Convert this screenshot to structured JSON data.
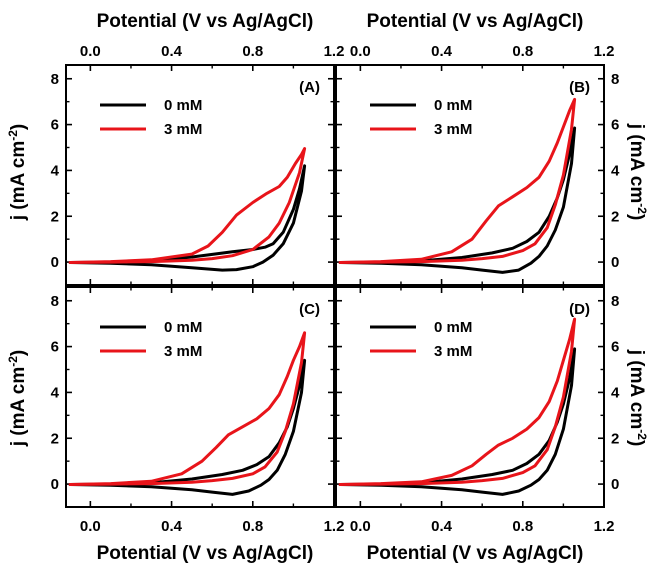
{
  "figure": {
    "x_axis_label": "Potential (V vs Ag/AgCl)",
    "y_axis_label": "j (mA cm",
    "y_axis_label_sup": "-2",
    "y_axis_label_close": ")"
  },
  "colors": {
    "series_0mM": "#000000",
    "series_3mM": "#e8141a",
    "axes": "#000000"
  },
  "chart_data": [
    {
      "type": "line",
      "panel_label": "(A)",
      "xlim": [
        -0.12,
        1.2
      ],
      "ylim": [
        -1,
        8.6
      ],
      "x_ticks": [
        "0.0",
        "0.4",
        "0.8",
        "1.2"
      ],
      "y_ticks": [
        "0",
        "2",
        "4",
        "6",
        "8"
      ],
      "legend_position": "top-left",
      "series": [
        {
          "name": "0 mM",
          "color": "#000000",
          "x": [
            -0.1,
            0.1,
            0.3,
            0.5,
            0.7,
            0.8,
            0.86,
            0.9,
            0.95,
            1.0,
            1.03,
            1.055,
            1.04,
            1.0,
            0.95,
            0.9,
            0.85,
            0.8,
            0.72,
            0.65,
            0.5,
            0.3,
            0.1,
            -0.1
          ],
          "y": [
            -0.02,
            0.0,
            0.05,
            0.22,
            0.45,
            0.55,
            0.65,
            0.8,
            1.3,
            2.3,
            3.2,
            4.2,
            3.1,
            1.7,
            0.8,
            0.3,
            0.0,
            -0.2,
            -0.33,
            -0.35,
            -0.25,
            -0.12,
            -0.05,
            -0.02
          ]
        },
        {
          "name": "3 mM",
          "color": "#e8141a",
          "x": [
            -0.1,
            0.1,
            0.3,
            0.5,
            0.58,
            0.65,
            0.72,
            0.8,
            0.87,
            0.93,
            0.97,
            1.01,
            1.04,
            1.055,
            1.03,
            0.98,
            0.93,
            0.88,
            0.8,
            0.7,
            0.6,
            0.5,
            0.3,
            0.1,
            -0.1
          ],
          "y": [
            -0.02,
            0.02,
            0.1,
            0.35,
            0.7,
            1.3,
            2.05,
            2.6,
            3.0,
            3.3,
            3.7,
            4.3,
            4.7,
            4.95,
            3.9,
            2.6,
            1.7,
            1.1,
            0.55,
            0.28,
            0.15,
            0.08,
            0.02,
            0.0,
            -0.02
          ]
        }
      ]
    },
    {
      "type": "line",
      "panel_label": "(B)",
      "xlim": [
        -0.12,
        1.2
      ],
      "ylim": [
        -1,
        8.6
      ],
      "x_ticks": [
        "0.0",
        "0.4",
        "0.8",
        "1.2"
      ],
      "y_ticks": [
        "0",
        "2",
        "4",
        "6",
        "8"
      ],
      "legend_position": "top-left",
      "series": [
        {
          "name": "0 mM",
          "color": "#000000",
          "x": [
            -0.1,
            0.1,
            0.3,
            0.5,
            0.65,
            0.75,
            0.82,
            0.88,
            0.93,
            0.97,
            1.0,
            1.03,
            1.055,
            1.04,
            1.0,
            0.96,
            0.92,
            0.88,
            0.84,
            0.78,
            0.7,
            0.6,
            0.5,
            0.3,
            0.1,
            -0.1
          ],
          "y": [
            -0.02,
            0.0,
            0.05,
            0.2,
            0.4,
            0.6,
            0.9,
            1.3,
            2.0,
            2.8,
            3.6,
            4.7,
            5.85,
            4.3,
            2.4,
            1.4,
            0.7,
            0.25,
            -0.05,
            -0.35,
            -0.45,
            -0.35,
            -0.25,
            -0.12,
            -0.05,
            -0.02
          ]
        },
        {
          "name": "3 mM",
          "color": "#e8141a",
          "x": [
            -0.1,
            0.1,
            0.3,
            0.45,
            0.55,
            0.62,
            0.68,
            0.75,
            0.82,
            0.88,
            0.93,
            0.97,
            1.0,
            1.03,
            1.055,
            1.04,
            1.0,
            0.96,
            0.92,
            0.86,
            0.8,
            0.7,
            0.6,
            0.5,
            0.3,
            0.1,
            -0.1
          ],
          "y": [
            -0.02,
            0.02,
            0.12,
            0.45,
            1.0,
            1.8,
            2.45,
            2.85,
            3.25,
            3.7,
            4.4,
            5.2,
            5.9,
            6.6,
            7.1,
            5.8,
            3.8,
            2.5,
            1.5,
            0.8,
            0.5,
            0.25,
            0.15,
            0.08,
            0.02,
            0.0,
            -0.02
          ]
        }
      ]
    },
    {
      "type": "line",
      "panel_label": "(C)",
      "xlim": [
        -0.12,
        1.2
      ],
      "ylim": [
        -1,
        8.6
      ],
      "x_ticks": [
        "0.0",
        "0.4",
        "0.8",
        "1.2"
      ],
      "y_ticks": [
        "0",
        "2",
        "4",
        "6",
        "8"
      ],
      "legend_position": "top-left",
      "series": [
        {
          "name": "0 mM",
          "color": "#000000",
          "x": [
            -0.1,
            0.1,
            0.3,
            0.5,
            0.65,
            0.75,
            0.82,
            0.88,
            0.93,
            0.97,
            1.0,
            1.03,
            1.055,
            1.04,
            1.0,
            0.96,
            0.92,
            0.88,
            0.84,
            0.78,
            0.7,
            0.6,
            0.5,
            0.3,
            0.1,
            -0.1
          ],
          "y": [
            -0.02,
            0.0,
            0.05,
            0.22,
            0.42,
            0.6,
            0.85,
            1.2,
            1.8,
            2.5,
            3.3,
            4.3,
            5.4,
            4.0,
            2.3,
            1.3,
            0.6,
            0.2,
            -0.05,
            -0.3,
            -0.45,
            -0.35,
            -0.25,
            -0.12,
            -0.05,
            -0.02
          ]
        },
        {
          "name": "3 mM",
          "color": "#e8141a",
          "x": [
            -0.1,
            0.1,
            0.3,
            0.45,
            0.55,
            0.62,
            0.68,
            0.75,
            0.82,
            0.88,
            0.93,
            0.97,
            1.0,
            1.03,
            1.055,
            1.04,
            1.0,
            0.96,
            0.92,
            0.86,
            0.8,
            0.7,
            0.6,
            0.5,
            0.3,
            0.1,
            -0.1
          ],
          "y": [
            -0.02,
            0.02,
            0.12,
            0.45,
            1.0,
            1.6,
            2.15,
            2.5,
            2.85,
            3.3,
            3.9,
            4.7,
            5.4,
            6.0,
            6.6,
            5.3,
            3.5,
            2.3,
            1.4,
            0.75,
            0.45,
            0.25,
            0.15,
            0.08,
            0.02,
            0.0,
            -0.02
          ]
        }
      ]
    },
    {
      "type": "line",
      "panel_label": "(D)",
      "xlim": [
        -0.12,
        1.2
      ],
      "ylim": [
        -1,
        8.6
      ],
      "x_ticks": [
        "0.0",
        "0.4",
        "0.8",
        "1.2"
      ],
      "y_ticks": [
        "0",
        "2",
        "4",
        "6",
        "8"
      ],
      "legend_position": "top-left",
      "series": [
        {
          "name": "0 mM",
          "color": "#000000",
          "x": [
            -0.1,
            0.1,
            0.3,
            0.5,
            0.65,
            0.75,
            0.82,
            0.88,
            0.93,
            0.97,
            1.0,
            1.03,
            1.055,
            1.04,
            1.0,
            0.96,
            0.92,
            0.88,
            0.84,
            0.78,
            0.7,
            0.6,
            0.5,
            0.3,
            0.1,
            -0.1
          ],
          "y": [
            -0.02,
            0.0,
            0.05,
            0.22,
            0.42,
            0.6,
            0.9,
            1.3,
            1.9,
            2.7,
            3.5,
            4.6,
            5.9,
            4.3,
            2.4,
            1.3,
            0.6,
            0.2,
            -0.05,
            -0.3,
            -0.45,
            -0.35,
            -0.25,
            -0.12,
            -0.05,
            -0.02
          ]
        },
        {
          "name": "3 mM",
          "color": "#e8141a",
          "x": [
            -0.1,
            0.1,
            0.3,
            0.45,
            0.55,
            0.62,
            0.68,
            0.75,
            0.82,
            0.88,
            0.93,
            0.97,
            1.0,
            1.03,
            1.055,
            1.04,
            1.0,
            0.96,
            0.92,
            0.86,
            0.8,
            0.7,
            0.6,
            0.5,
            0.3,
            0.1,
            -0.1
          ],
          "y": [
            -0.02,
            0.02,
            0.1,
            0.38,
            0.8,
            1.3,
            1.7,
            2.0,
            2.4,
            2.9,
            3.6,
            4.5,
            5.4,
            6.3,
            7.2,
            5.8,
            3.8,
            2.5,
            1.5,
            0.8,
            0.5,
            0.25,
            0.15,
            0.08,
            0.02,
            0.0,
            -0.02
          ]
        }
      ]
    }
  ]
}
